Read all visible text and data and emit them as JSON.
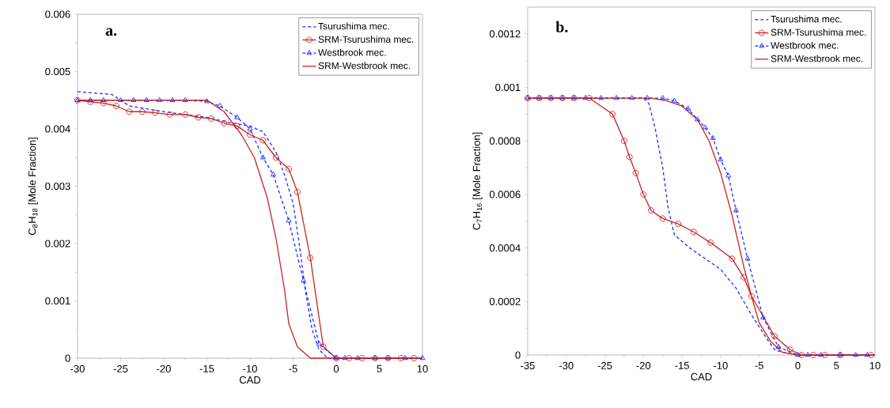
{
  "chart_data": [
    {
      "type": "line",
      "xlabel": "CAD",
      "ylabel": "C$_{8}$H$_{18}$ [Mole Fraction]",
      "annotations": [
        "a."
      ],
      "xlim": [
        -30,
        10
      ],
      "ylim": [
        0,
        0.006
      ],
      "xticks": [
        -30,
        -25,
        -20,
        -15,
        -10,
        -5,
        0,
        5,
        10
      ],
      "yticks": [
        0,
        0.001,
        0.002,
        0.003,
        0.004,
        0.005,
        0.006
      ],
      "legend": "top right",
      "series": [
        {
          "name": "Tsurushima mec.",
          "color": "#1f2fff",
          "line_style": "dashed",
          "marker": "none",
          "x": [
            -30,
            -26,
            -24,
            -20,
            -15,
            -12,
            -10,
            -8.5,
            -7,
            -6,
            -5,
            -4.3,
            -3.5,
            -2.8,
            -2,
            -1,
            0,
            10
          ],
          "values": [
            0.00465,
            0.0046,
            0.0044,
            0.0043,
            0.0042,
            0.0041,
            0.00405,
            0.00395,
            0.0036,
            0.0032,
            0.0027,
            0.002,
            0.0011,
            0.0005,
            0.00015,
            0,
            0,
            0
          ]
        },
        {
          "name": "SRM-Tsurushima mec.",
          "color": "#cc2222",
          "line_style": "solid",
          "marker": "circle",
          "x": [
            -30,
            -28.5,
            -27,
            -25.5,
            -24,
            -22.5,
            -21,
            -19.3,
            -17.5,
            -16,
            -14.5,
            -13,
            -11.5,
            -10,
            -8.5,
            -7,
            -5.5,
            -4.5,
            -3,
            -1.5,
            0,
            1.5,
            3,
            4.5,
            6,
            7.5,
            9
          ],
          "values": [
            0.0045,
            0.00447,
            0.00445,
            0.0044,
            0.0043,
            0.0043,
            0.00428,
            0.00425,
            0.00425,
            0.0042,
            0.00418,
            0.0041,
            0.00405,
            0.0039,
            0.0038,
            0.0035,
            0.0033,
            0.0029,
            0.00175,
            0.0002,
            0,
            0,
            0,
            0,
            0,
            0,
            0
          ]
        },
        {
          "name": "Westbrook mec.",
          "color": "#1f2fff",
          "line_style": "dashed",
          "marker": "triangle",
          "x": [
            -30,
            -28.5,
            -27,
            -25,
            -23.5,
            -22,
            -20.5,
            -19,
            -17.5,
            -15,
            -13.5,
            -11.5,
            -10,
            -8.5,
            -7.3,
            -5.5,
            -3.8,
            -2,
            0,
            1,
            2.5,
            4.5,
            6,
            8,
            10
          ],
          "values": [
            0.0045,
            0.0045,
            0.0045,
            0.0045,
            0.0045,
            0.0045,
            0.0045,
            0.0045,
            0.0045,
            0.00448,
            0.0044,
            0.0042,
            0.004,
            0.0035,
            0.0032,
            0.0024,
            0.00135,
            0.00025,
            0,
            0,
            0,
            0,
            0,
            0,
            0
          ]
        },
        {
          "name": "SRM-Westbrook mec.",
          "color": "#cc2222",
          "line_style": "solid",
          "marker": "none",
          "x": [
            -30,
            -15,
            -13,
            -11,
            -9.5,
            -8,
            -7,
            -6,
            -5.5,
            -4.5,
            -3,
            -1,
            10
          ],
          "values": [
            0.0045,
            0.0045,
            0.0043,
            0.0039,
            0.0035,
            0.0028,
            0.0021,
            0.0012,
            0.0006,
            0.0002,
            0,
            0,
            0
          ]
        }
      ]
    },
    {
      "type": "line",
      "xlabel": "CAD",
      "ylabel": "C$_{7}$H$_{16}$ [Mole Fraction]",
      "annotations": [
        "b."
      ],
      "xlim": [
        -35,
        10
      ],
      "ylim": [
        0,
        0.0013
      ],
      "xticks": [
        -35,
        -30,
        -25,
        -20,
        -15,
        -10,
        -5,
        0,
        5,
        10
      ],
      "yticks": [
        0,
        0.0002,
        0.0004,
        0.0006,
        0.0008,
        0.001,
        0.0012
      ],
      "legend": "top right",
      "series": [
        {
          "name": "Tsurushima mec.",
          "color": "#1f2fff",
          "line_style": "dashed",
          "marker": "none",
          "x": [
            -35,
            -20,
            -19.3,
            -18.5,
            -17.5,
            -16.8,
            -16,
            -14,
            -12,
            -10,
            -8,
            -6,
            -4,
            -3,
            -2,
            0,
            10
          ],
          "values": [
            0.00096,
            0.00096,
            0.00094,
            0.00085,
            0.0007,
            0.00055,
            0.00045,
            0.0004,
            0.00036,
            0.00032,
            0.00025,
            0.00015,
            6e-05,
            2e-05,
            1e-05,
            0,
            0
          ]
        },
        {
          "name": "SRM-Tsurushima mec.",
          "color": "#cc2222",
          "line_style": "solid",
          "marker": "circle",
          "x": [
            -35,
            -33.5,
            -32,
            -30.5,
            -29,
            -27,
            -24,
            -22.5,
            -21.8,
            -21,
            -20,
            -19,
            -17.5,
            -15.5,
            -13.5,
            -11.3,
            -8.5,
            -7,
            -6,
            -3,
            -1,
            0.5,
            2,
            3.5,
            5.5,
            9.5
          ],
          "values": [
            0.00096,
            0.00096,
            0.00096,
            0.00096,
            0.00096,
            0.00096,
            0.0009,
            0.0008,
            0.00074,
            0.00068,
            0.0006,
            0.00054,
            0.00051,
            0.00049,
            0.00046,
            0.00042,
            0.00036,
            0.00029,
            0.00022,
            7e-05,
            2e-05,
            0,
            0,
            0,
            0,
            0
          ]
        },
        {
          "name": "Westbrook mec.",
          "color": "#1f2fff",
          "line_style": "dashed",
          "marker": "triangle",
          "x": [
            -35,
            -33.5,
            -32,
            -30.5,
            -29,
            -27.5,
            -25.5,
            -23.5,
            -21.5,
            -19.5,
            -17.5,
            -16,
            -14.2,
            -13,
            -12,
            -11,
            -10,
            -9,
            -8,
            -6.5,
            -4.5,
            -2.5,
            0,
            1.3,
            3,
            5.5,
            7.5,
            9
          ],
          "values": [
            0.00096,
            0.00096,
            0.00096,
            0.00096,
            0.00096,
            0.00096,
            0.00096,
            0.00096,
            0.00096,
            0.00096,
            0.00096,
            0.00095,
            0.00092,
            0.00088,
            0.00085,
            0.00081,
            0.00073,
            0.00067,
            0.00054,
            0.00036,
            0.00014,
            3e-05,
            0,
            0,
            0,
            0,
            0,
            0
          ]
        },
        {
          "name": "SRM-Westbrook mec.",
          "color": "#cc2222",
          "line_style": "solid",
          "marker": "none",
          "x": [
            -35,
            -19,
            -17,
            -15,
            -13,
            -11.5,
            -10,
            -8.5,
            -7,
            -6,
            -5,
            -3.5,
            -2,
            0,
            10
          ],
          "values": [
            0.00096,
            0.00096,
            0.00095,
            0.00093,
            0.00088,
            0.0008,
            0.00068,
            0.00052,
            0.00033,
            0.00022,
            0.00012,
            5e-05,
            1e-05,
            0,
            0
          ]
        }
      ]
    }
  ]
}
